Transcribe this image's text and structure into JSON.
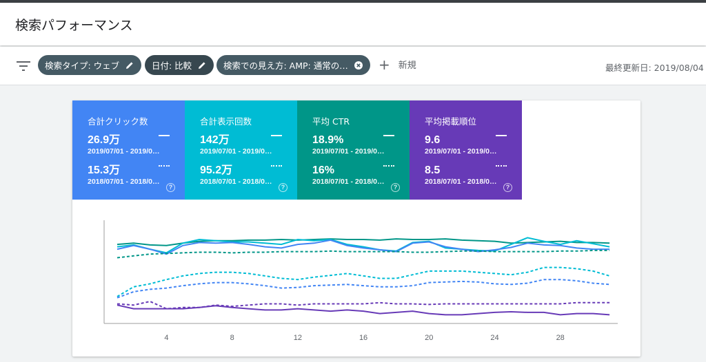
{
  "header": {
    "title": "検索パフォーマンス"
  },
  "filters": {
    "chips": [
      {
        "label": "検索タイプ: ウェブ",
        "icon": "pencil-icon"
      },
      {
        "label": "日付: 比較",
        "icon": "pencil-icon"
      },
      {
        "label": "検索での見え方: AMP: 通常の…",
        "icon": "close-circle-icon"
      }
    ],
    "new_label": "新規",
    "last_updated": "最終更新日: 2019/08/04"
  },
  "metrics": [
    {
      "label": "合計クリック数",
      "color": "#4285f4",
      "current": "26.9万",
      "current_range": "2019/07/01 - 2019/0…",
      "previous": "15.3万",
      "previous_range": "2018/07/01 - 2018/0…"
    },
    {
      "label": "合計表示回数",
      "color": "#00bcd4",
      "current": "142万",
      "current_range": "2019/07/01 - 2019/0…",
      "previous": "95.2万",
      "previous_range": "2018/07/01 - 2018/0…"
    },
    {
      "label": "平均 CTR",
      "color": "#009688",
      "current": "18.9%",
      "current_range": "2019/07/01 - 2019/0…",
      "previous": "16%",
      "previous_range": "2018/07/01 - 2018/0…"
    },
    {
      "label": "平均掲載順位",
      "color": "#673ab7",
      "current": "9.6",
      "current_range": "2019/07/01 - 2019/0…",
      "previous": "8.5",
      "previous_range": "2018/07/01 - 2018/0…"
    }
  ],
  "chart_data": {
    "type": "line",
    "x": [
      1,
      2,
      3,
      4,
      5,
      6,
      7,
      8,
      9,
      10,
      11,
      12,
      13,
      14,
      15,
      16,
      17,
      18,
      19,
      20,
      21,
      22,
      23,
      24,
      25,
      26,
      27,
      28,
      29,
      30,
      31
    ],
    "x_ticks": [
      4,
      8,
      12,
      16,
      20,
      24,
      28
    ],
    "grid": false,
    "series": [
      {
        "color": "#009688",
        "dashed": false,
        "values": [
          82,
          80,
          83,
          84,
          80,
          77,
          76,
          76,
          75,
          75,
          74,
          75,
          74,
          73,
          74,
          74,
          75,
          73,
          74,
          74,
          73,
          75,
          76,
          77,
          80,
          79,
          78,
          77,
          79,
          79,
          80
        ]
      },
      {
        "color": "#00bcd4",
        "dashed": false,
        "values": [
          86,
          83,
          90,
          96,
          80,
          74,
          76,
          78,
          78,
          80,
          82,
          74,
          76,
          74,
          82,
          86,
          91,
          93,
          79,
          77,
          88,
          90,
          92,
          93,
          82,
          71,
          77,
          82,
          76,
          81,
          86
        ]
      },
      {
        "color": "#4285f4",
        "dashed": false,
        "values": [
          90,
          84,
          90,
          98,
          84,
          79,
          80,
          79,
          82,
          86,
          88,
          82,
          80,
          75,
          84,
          88,
          91,
          94,
          80,
          78,
          86,
          90,
          94,
          91,
          87,
          80,
          83,
          84,
          88,
          90,
          90
        ]
      },
      {
        "color": "#009688",
        "dashed": true,
        "values": [
          104,
          101,
          98,
          97,
          96,
          95,
          95,
          96,
          95,
          95,
          94,
          94,
          94,
          93,
          94,
          94,
          94,
          94,
          95,
          95,
          94,
          93,
          93,
          94,
          94,
          94,
          94,
          93,
          93,
          92,
          92
        ]
      },
      {
        "color": "#00bcd4",
        "dashed": true,
        "values": [
          168,
          152,
          147,
          140,
          134,
          130,
          128,
          128,
          130,
          134,
          138,
          140,
          136,
          133,
          130,
          134,
          138,
          138,
          132,
          126,
          126,
          126,
          128,
          130,
          132,
          128,
          120,
          120,
          122,
          126,
          134
        ]
      },
      {
        "color": "#4285f4",
        "dashed": true,
        "values": [
          170,
          160,
          156,
          154,
          150,
          147,
          145,
          145,
          147,
          150,
          154,
          153,
          150,
          149,
          148,
          150,
          152,
          152,
          150,
          145,
          144,
          143,
          144,
          147,
          148,
          146,
          140,
          140,
          142,
          146,
          148
        ]
      },
      {
        "color": "#673ab7",
        "dashed": true,
        "values": [
          180,
          182,
          176,
          188,
          186,
          186,
          182,
          184,
          182,
          180,
          180,
          182,
          180,
          180,
          180,
          180,
          178,
          180,
          180,
          181,
          180,
          180,
          180,
          180,
          180,
          180,
          180,
          180,
          178,
          178,
          178
        ]
      },
      {
        "color": "#673ab7",
        "dashed": false,
        "values": [
          182,
          188,
          188,
          188,
          188,
          186,
          183,
          186,
          188,
          190,
          190,
          188,
          190,
          192,
          190,
          192,
          196,
          194,
          192,
          196,
          198,
          198,
          196,
          194,
          193,
          194,
          194,
          198,
          196,
          196,
          198
        ]
      }
    ]
  }
}
